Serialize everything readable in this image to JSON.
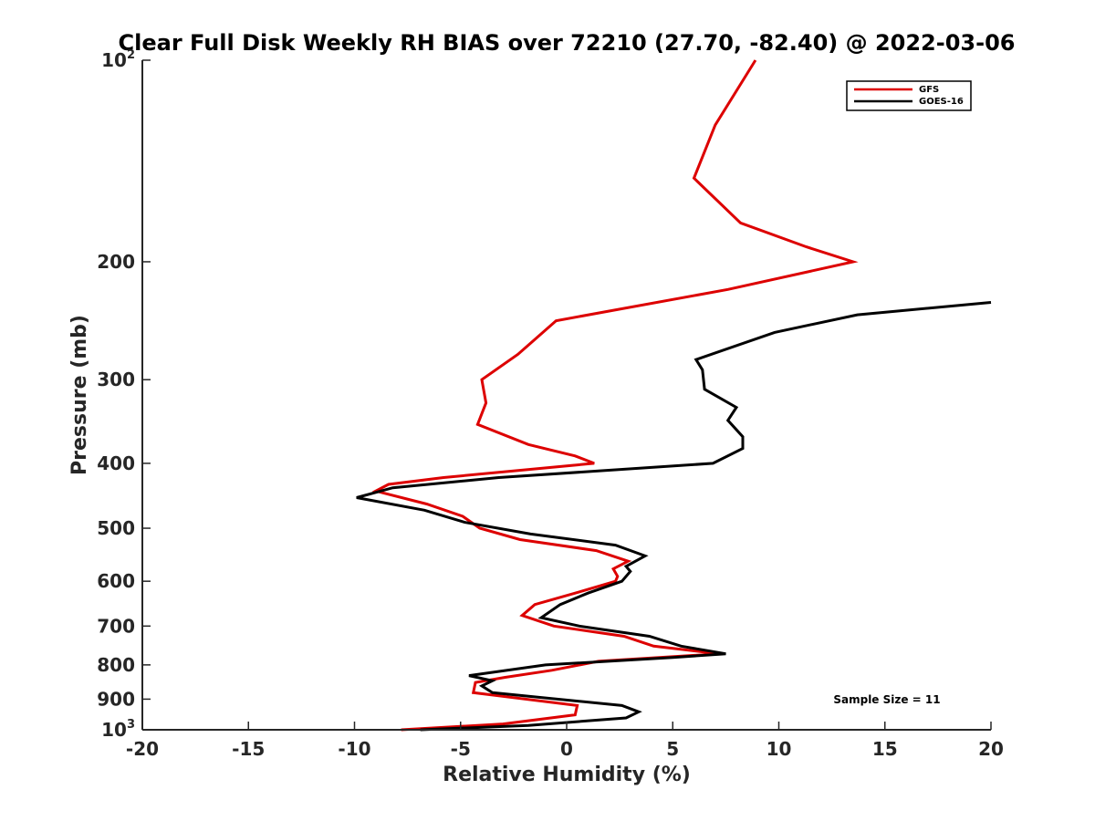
{
  "chart_data": {
    "type": "line",
    "title": "Clear Full Disk Weekly RH BIAS over 72210 (27.70, -82.40) @ 2022-03-06",
    "xlabel": "Relative Humidity (%)",
    "ylabel": "Pressure (mb)",
    "xlim": [
      -20,
      20
    ],
    "ylim": [
      100,
      1000
    ],
    "y_scale": "log",
    "y_reversed": true,
    "x_ticks": [
      -20,
      -15,
      -10,
      -5,
      0,
      5,
      10,
      15,
      20
    ],
    "x_tick_labels": [
      "-20",
      "-15",
      "-10",
      "-5",
      "0",
      "5",
      "10",
      "15",
      "20"
    ],
    "y_ticks": [
      100,
      200,
      300,
      400,
      500,
      600,
      700,
      800,
      900,
      1000
    ],
    "y_tick_labels": [
      {
        "base": "10",
        "sup": "2"
      },
      {
        "base": "200",
        "sup": ""
      },
      {
        "base": "300",
        "sup": ""
      },
      {
        "base": "400",
        "sup": ""
      },
      {
        "base": "500",
        "sup": ""
      },
      {
        "base": "600",
        "sup": ""
      },
      {
        "base": "700",
        "sup": ""
      },
      {
        "base": "800",
        "sup": ""
      },
      {
        "base": "900",
        "sup": ""
      },
      {
        "base": "10",
        "sup": "3"
      }
    ],
    "grid": false,
    "legend_position": "top-right",
    "annotation": "Sample Size = 11",
    "series": [
      {
        "name": "GFS",
        "color": "#dd0000",
        "points": [
          [
            8.9,
            100
          ],
          [
            7.0,
            125
          ],
          [
            6.0,
            150
          ],
          [
            8.2,
            175
          ],
          [
            11.3,
            190
          ],
          [
            13.5,
            200
          ],
          [
            7.6,
            220
          ],
          [
            -0.5,
            245
          ],
          [
            -2.3,
            275
          ],
          [
            -4.0,
            300
          ],
          [
            -3.8,
            325
          ],
          [
            -4.2,
            350
          ],
          [
            -1.8,
            375
          ],
          [
            0.4,
            390
          ],
          [
            1.3,
            400
          ],
          [
            -5.8,
            420
          ],
          [
            -8.4,
            430
          ],
          [
            -9.0,
            440
          ],
          [
            -6.6,
            460
          ],
          [
            -4.9,
            480
          ],
          [
            -4.1,
            500
          ],
          [
            -2.2,
            520
          ],
          [
            1.4,
            540
          ],
          [
            2.9,
            560
          ],
          [
            2.2,
            575
          ],
          [
            2.4,
            590
          ],
          [
            2.3,
            600
          ],
          [
            0.4,
            625
          ],
          [
            -1.5,
            650
          ],
          [
            -2.1,
            675
          ],
          [
            -0.6,
            700
          ],
          [
            2.7,
            725
          ],
          [
            4.1,
            750
          ],
          [
            7.2,
            770
          ],
          [
            1.5,
            790
          ],
          [
            -0.7,
            815
          ],
          [
            -2.9,
            835
          ],
          [
            -4.3,
            850
          ],
          [
            -4.4,
            880
          ],
          [
            0.5,
            920
          ],
          [
            0.4,
            950
          ],
          [
            -3.0,
            980
          ],
          [
            -7.8,
            1000
          ]
        ]
      },
      {
        "name": "GOES-16",
        "color": "#000000",
        "points": [
          [
            20.0,
            230
          ],
          [
            13.7,
            240
          ],
          [
            9.8,
            255
          ],
          [
            6.1,
            280
          ],
          [
            6.4,
            290
          ],
          [
            6.5,
            310
          ],
          [
            8.0,
            330
          ],
          [
            7.6,
            345
          ],
          [
            8.3,
            365
          ],
          [
            8.3,
            380
          ],
          [
            6.9,
            400
          ],
          [
            -3.2,
            420
          ],
          [
            -8.2,
            435
          ],
          [
            -9.9,
            450
          ],
          [
            -6.7,
            470
          ],
          [
            -4.8,
            490
          ],
          [
            -1.7,
            510
          ],
          [
            2.3,
            530
          ],
          [
            3.7,
            550
          ],
          [
            2.8,
            570
          ],
          [
            3.0,
            580
          ],
          [
            2.6,
            600
          ],
          [
            1.0,
            625
          ],
          [
            -0.3,
            650
          ],
          [
            -1.2,
            680
          ],
          [
            0.6,
            700
          ],
          [
            3.9,
            725
          ],
          [
            5.4,
            750
          ],
          [
            7.5,
            770
          ],
          [
            5.0,
            780
          ],
          [
            -1.0,
            800
          ],
          [
            -4.6,
            830
          ],
          [
            -3.5,
            845
          ],
          [
            -4.0,
            860
          ],
          [
            -3.5,
            880
          ],
          [
            2.6,
            920
          ],
          [
            3.4,
            940
          ],
          [
            2.8,
            960
          ],
          [
            -1.8,
            985
          ],
          [
            -6.9,
            1000
          ]
        ]
      }
    ]
  }
}
